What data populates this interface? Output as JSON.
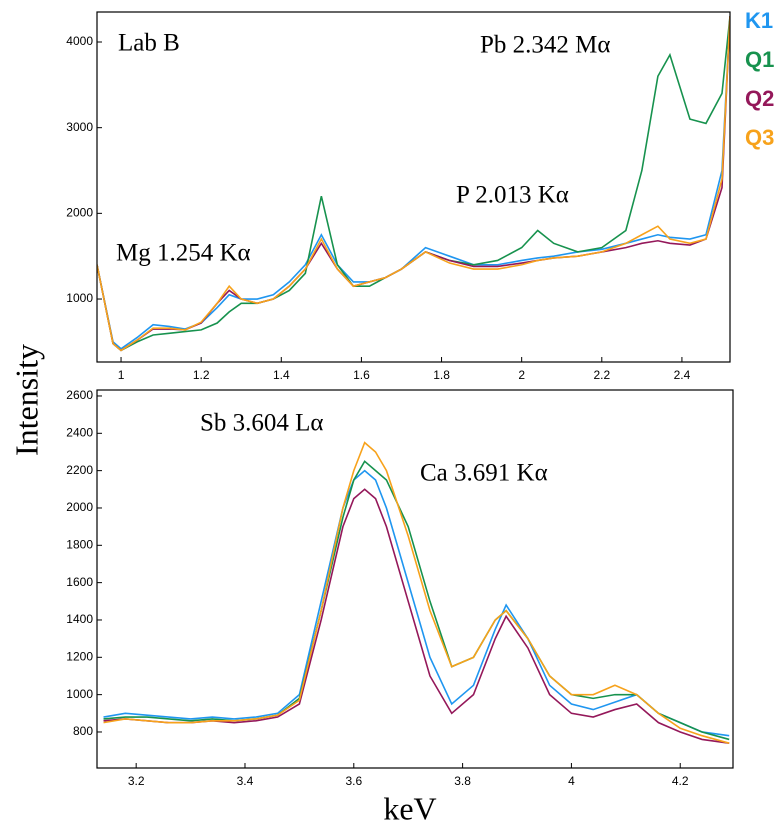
{
  "chart_data": [
    {
      "type": "line",
      "ylabel": "Intensity",
      "annotations": [
        "Lab B",
        "Mg 1.254 Kα",
        "P 2.013 Kα",
        "Pb 2.342 Mα"
      ],
      "x": [
        0.94,
        0.98,
        1.0,
        1.04,
        1.08,
        1.12,
        1.16,
        1.2,
        1.24,
        1.27,
        1.3,
        1.34,
        1.38,
        1.42,
        1.46,
        1.5,
        1.54,
        1.58,
        1.62,
        1.66,
        1.7,
        1.76,
        1.82,
        1.88,
        1.94,
        2.0,
        2.04,
        2.08,
        2.14,
        2.2,
        2.26,
        2.3,
        2.34,
        2.37,
        2.42,
        2.46,
        2.5,
        2.52
      ],
      "xlim": [
        0.94,
        2.52
      ],
      "ylim": [
        265,
        4350
      ],
      "xticks": [
        1,
        1.2,
        1.4,
        1.6,
        1.8,
        2,
        2.2,
        2.4
      ],
      "yticks": [
        1000,
        2000,
        3000,
        4000
      ],
      "series": [
        {
          "name": "K1",
          "color": "#1f96f0",
          "values": [
            1400,
            500,
            420,
            550,
            700,
            680,
            650,
            720,
            900,
            1050,
            1000,
            1000,
            1050,
            1200,
            1400,
            1750,
            1400,
            1200,
            1200,
            1250,
            1350,
            1600,
            1500,
            1400,
            1400,
            1450,
            1480,
            1500,
            1550,
            1580,
            1650,
            1700,
            1750,
            1720,
            1700,
            1750,
            2500,
            4300
          ]
        },
        {
          "name": "Q1",
          "color": "#17924e",
          "values": [
            1400,
            480,
            400,
            500,
            580,
            600,
            620,
            640,
            720,
            850,
            950,
            950,
            1000,
            1100,
            1300,
            2200,
            1400,
            1150,
            1150,
            1250,
            1350,
            1550,
            1450,
            1400,
            1450,
            1600,
            1800,
            1650,
            1550,
            1600,
            1800,
            2500,
            3600,
            3850,
            3100,
            3050,
            3400,
            4300
          ]
        },
        {
          "name": "Q2",
          "color": "#94185a",
          "values": [
            1400,
            480,
            400,
            520,
            650,
            650,
            640,
            720,
            950,
            1100,
            1000,
            950,
            1000,
            1150,
            1350,
            1650,
            1350,
            1150,
            1200,
            1250,
            1350,
            1550,
            1450,
            1380,
            1380,
            1420,
            1450,
            1480,
            1500,
            1550,
            1600,
            1650,
            1680,
            1650,
            1630,
            1700,
            2300,
            4300
          ]
        },
        {
          "name": "Q3",
          "color": "#f7a21b",
          "values": [
            1400,
            480,
            400,
            520,
            660,
            660,
            640,
            730,
            950,
            1150,
            1000,
            950,
            1000,
            1150,
            1350,
            1700,
            1350,
            1150,
            1200,
            1250,
            1350,
            1550,
            1420,
            1350,
            1350,
            1400,
            1450,
            1480,
            1500,
            1550,
            1650,
            1750,
            1850,
            1700,
            1650,
            1700,
            2400,
            4300
          ]
        }
      ]
    },
    {
      "type": "line",
      "xlabel": "keV",
      "annotations": [
        "Sb 3.604 Lα",
        "Ca 3.691 Kα"
      ],
      "x": [
        3.14,
        3.18,
        3.22,
        3.26,
        3.3,
        3.34,
        3.38,
        3.42,
        3.46,
        3.5,
        3.54,
        3.58,
        3.6,
        3.62,
        3.64,
        3.66,
        3.7,
        3.74,
        3.78,
        3.82,
        3.86,
        3.88,
        3.92,
        3.96,
        4.0,
        4.04,
        4.08,
        4.12,
        4.16,
        4.2,
        4.24,
        4.29
      ],
      "xlim": [
        3.128,
        4.297
      ],
      "ylim": [
        607,
        2632
      ],
      "xticks": [
        3.2,
        3.4,
        3.6,
        3.8,
        4,
        4.2
      ],
      "yticks": [
        800,
        1000,
        1200,
        1400,
        1600,
        1800,
        2000,
        2200,
        2400,
        2600
      ],
      "series": [
        {
          "name": "K1",
          "color": "#1f96f0",
          "values": [
            880,
            900,
            890,
            880,
            870,
            880,
            870,
            880,
            900,
            1000,
            1500,
            2000,
            2150,
            2200,
            2150,
            2000,
            1600,
            1200,
            950,
            1050,
            1350,
            1480,
            1300,
            1050,
            950,
            920,
            960,
            1000,
            900,
            850,
            800,
            780
          ]
        },
        {
          "name": "Q1",
          "color": "#17924e",
          "values": [
            870,
            880,
            880,
            870,
            860,
            870,
            860,
            870,
            890,
            980,
            1450,
            1950,
            2150,
            2250,
            2200,
            2150,
            1900,
            1500,
            1150,
            1200,
            1400,
            1450,
            1300,
            1100,
            1000,
            980,
            1000,
            1000,
            900,
            850,
            800,
            760
          ]
        },
        {
          "name": "Q2",
          "color": "#94185a",
          "values": [
            860,
            870,
            860,
            850,
            850,
            860,
            850,
            860,
            880,
            950,
            1400,
            1900,
            2050,
            2100,
            2050,
            1900,
            1500,
            1100,
            900,
            1000,
            1300,
            1420,
            1250,
            1000,
            900,
            880,
            920,
            950,
            850,
            800,
            760,
            740
          ]
        },
        {
          "name": "Q3",
          "color": "#f7a21b",
          "values": [
            850,
            870,
            860,
            850,
            850,
            860,
            860,
            870,
            890,
            970,
            1450,
            2000,
            2200,
            2350,
            2300,
            2200,
            1850,
            1450,
            1150,
            1200,
            1400,
            1450,
            1300,
            1100,
            1000,
            1000,
            1050,
            1000,
            900,
            820,
            780,
            740
          ]
        }
      ]
    }
  ]
}
